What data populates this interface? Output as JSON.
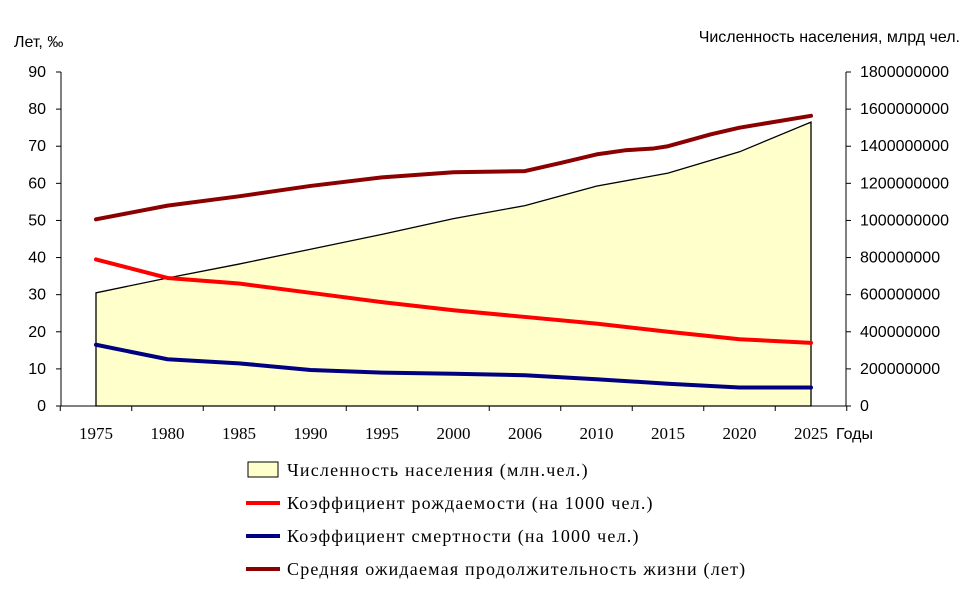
{
  "chart_data": {
    "type": "line",
    "ylabel": "Лет, ‰",
    "y2label": "Численность населения, млрд чел.",
    "xlabel": "Годы",
    "categories": [
      "1975",
      "1980",
      "1985",
      "1990",
      "1995",
      "2000",
      "2006",
      "2010",
      "2015",
      "2020",
      "2025"
    ],
    "x_years": [
      1975,
      1980,
      1985,
      1990,
      1995,
      2000,
      2006,
      2008,
      2010,
      2012,
      2014,
      2015,
      2018,
      2020,
      2025
    ],
    "ylim": [
      0,
      90
    ],
    "yticks": [
      "0",
      "10",
      "20",
      "30",
      "40",
      "50",
      "60",
      "70",
      "80",
      "90"
    ],
    "y2lim": [
      0,
      1800000000
    ],
    "y2ticks": [
      "0",
      "200000000",
      "400000000",
      "600000000",
      "800000000",
      "1000000000",
      "1200000000",
      "1400000000",
      "1600000000",
      "1800000000"
    ],
    "grid": false,
    "legend_position": "bottom",
    "series": [
      {
        "name": "Численность населения (млн.чел.)",
        "kind": "area",
        "axis": "right",
        "color": "#FFFFCC",
        "x": [
          1975,
          1980,
          1985,
          1990,
          1995,
          2000,
          2006,
          2010,
          2015,
          2020,
          2025
        ],
        "values": [
          610000000,
          690000000,
          765000000,
          845000000,
          925000000,
          1010000000,
          1080000000,
          1185000000,
          1255000000,
          1370000000,
          1530000000
        ]
      },
      {
        "name": "Коэффициент рождаемости (на 1000  чел.)",
        "kind": "line",
        "axis": "left",
        "color": "#FF0000",
        "x": [
          1975,
          1980,
          1985,
          1990,
          1995,
          2000,
          2006,
          2010,
          2015,
          2020,
          2025
        ],
        "values": [
          39.5,
          34.5,
          33,
          30.5,
          28,
          25.8,
          24,
          22.2,
          20,
          18,
          17
        ]
      },
      {
        "name": "Коэффициент смертности (на 1000 чел.)",
        "kind": "line",
        "axis": "left",
        "color": "#000080",
        "x": [
          1975,
          1980,
          1985,
          1990,
          1995,
          2000,
          2006,
          2010,
          2015,
          2020,
          2025
        ],
        "values": [
          16.5,
          12.6,
          11.5,
          9.7,
          9,
          8.7,
          8.3,
          7.2,
          6,
          5,
          5
        ]
      },
      {
        "name": "Средняя ожидаемая продолжительность жизни (лет)",
        "kind": "line",
        "axis": "left",
        "color": "#8B0000",
        "x": [
          1975,
          1980,
          1985,
          1990,
          1995,
          2000,
          2006,
          2008,
          2010,
          2012,
          2014,
          2015,
          2018,
          2020,
          2025
        ],
        "values": [
          50.3,
          54,
          56.5,
          59.3,
          61.6,
          63,
          63.3,
          65.5,
          67.8,
          68.9,
          69.4,
          70,
          73.2,
          75,
          78.2
        ]
      }
    ]
  }
}
